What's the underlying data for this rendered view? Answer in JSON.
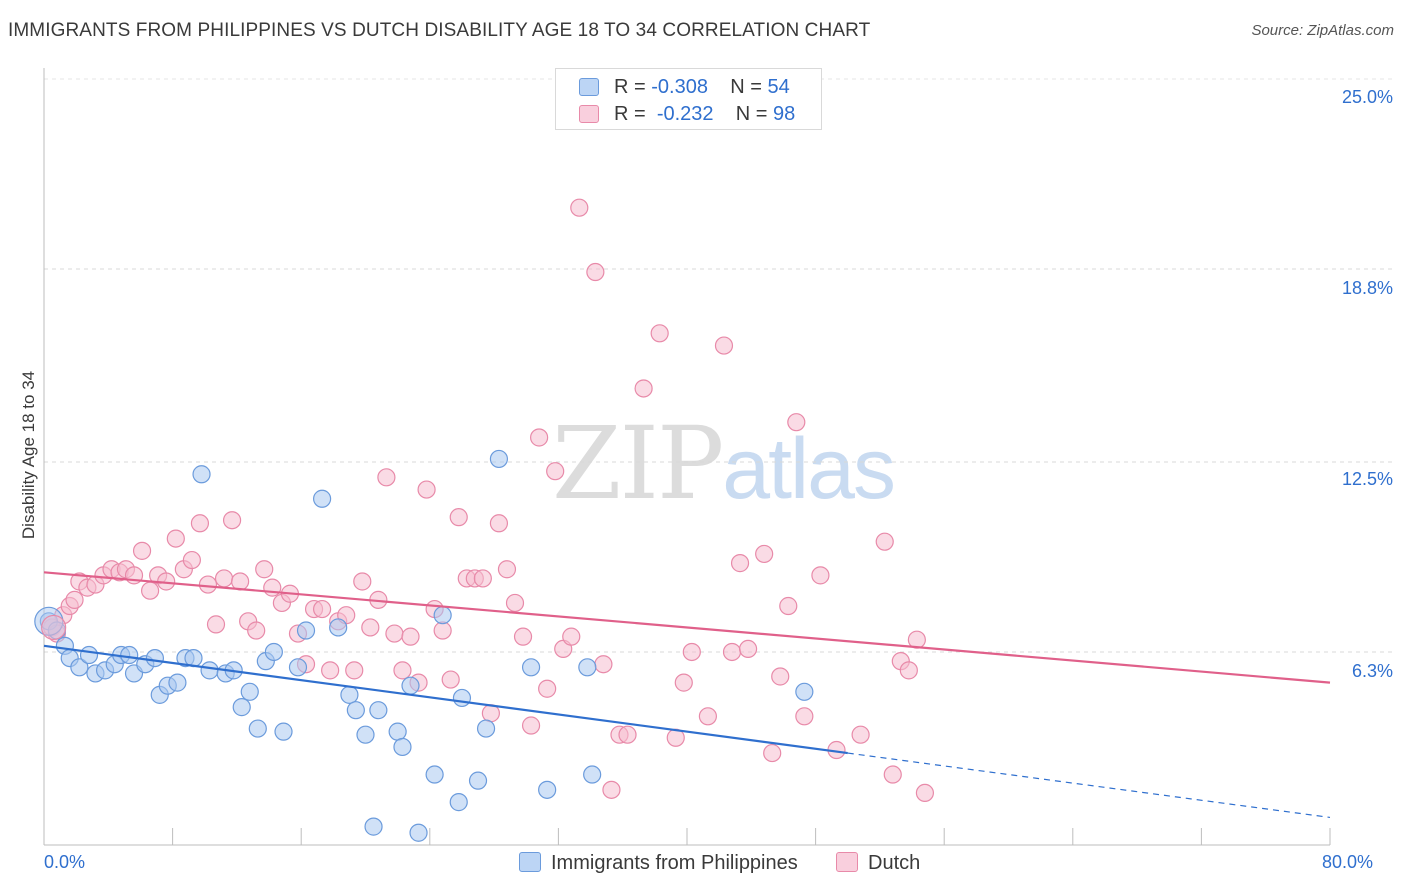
{
  "header": {
    "title": "IMMIGRANTS FROM PHILIPPINES VS DUTCH DISABILITY AGE 18 TO 34 CORRELATION CHART",
    "source": "Source: ZipAtlas.com"
  },
  "watermark": {
    "zip": "ZIP",
    "atlas": "atlas"
  },
  "legend": {
    "rows": [
      {
        "r_label": "R =",
        "r_value": "-0.308",
        "n_label": "N =",
        "n_value": "54"
      },
      {
        "r_label": "R =",
        "r_value": "-0.232",
        "n_label": "N =",
        "n_value": "98"
      }
    ]
  },
  "colors": {
    "blue_fill": "#a9c8f0",
    "blue_stroke": "#6b9bdc",
    "blue_line": "#2f6fce",
    "pink_fill": "#f6bdd0",
    "pink_stroke": "#e88aa9",
    "pink_line": "#e0608a",
    "tick_text": "#2f6fce",
    "grid": "#d8d8d8"
  },
  "chart_data": {
    "type": "scatter",
    "title": "IMMIGRANTS FROM PHILIPPINES VS DUTCH DISABILITY AGE 18 TO 34 CORRELATION CHART",
    "xlabel": "",
    "ylabel": "Disability Age 18 to 34",
    "xlim": [
      0,
      80
    ],
    "ylim": [
      0,
      25
    ],
    "x_tick_labels": [
      "0.0%",
      "80.0%"
    ],
    "y_ticks": [
      6.3,
      12.5,
      18.8,
      25.0
    ],
    "y_tick_labels": [
      "6.3%",
      "12.5%",
      "18.8%",
      "25.0%"
    ],
    "grid": true,
    "legend_position": "top-center",
    "series": [
      {
        "name": "Immigrants from Philippines",
        "color": "#6b9bdc",
        "trend": {
          "x": [
            0,
            50
          ],
          "y": [
            6.5,
            3.0
          ],
          "dashed_extension_to": [
            80,
            0.9
          ]
        },
        "points": [
          [
            0.3,
            7.3
          ],
          [
            0.8,
            7.0
          ],
          [
            1.3,
            6.5
          ],
          [
            1.6,
            6.1
          ],
          [
            2.2,
            5.8
          ],
          [
            2.8,
            6.2
          ],
          [
            3.2,
            5.6
          ],
          [
            3.8,
            5.7
          ],
          [
            4.4,
            5.9
          ],
          [
            4.8,
            6.2
          ],
          [
            5.3,
            6.2
          ],
          [
            5.6,
            5.6
          ],
          [
            6.3,
            5.9
          ],
          [
            6.9,
            6.1
          ],
          [
            7.2,
            4.9
          ],
          [
            7.7,
            5.2
          ],
          [
            8.3,
            5.3
          ],
          [
            8.8,
            6.1
          ],
          [
            9.3,
            6.1
          ],
          [
            9.8,
            12.1
          ],
          [
            10.3,
            5.7
          ],
          [
            11.3,
            5.6
          ],
          [
            11.8,
            5.7
          ],
          [
            12.3,
            4.5
          ],
          [
            12.8,
            5.0
          ],
          [
            13.3,
            3.8
          ],
          [
            13.8,
            6.0
          ],
          [
            14.3,
            6.3
          ],
          [
            14.9,
            3.7
          ],
          [
            15.8,
            5.8
          ],
          [
            16.3,
            7.0
          ],
          [
            17.3,
            11.3
          ],
          [
            18.3,
            7.1
          ],
          [
            19.0,
            4.9
          ],
          [
            19.4,
            4.4
          ],
          [
            20.0,
            3.6
          ],
          [
            20.8,
            4.4
          ],
          [
            20.5,
            0.6
          ],
          [
            22.0,
            3.7
          ],
          [
            22.3,
            3.2
          ],
          [
            22.8,
            5.2
          ],
          [
            23.3,
            0.4
          ],
          [
            24.3,
            2.3
          ],
          [
            24.8,
            7.5
          ],
          [
            25.8,
            1.4
          ],
          [
            26.0,
            4.8
          ],
          [
            27.0,
            2.1
          ],
          [
            27.5,
            3.8
          ],
          [
            28.3,
            12.6
          ],
          [
            30.3,
            5.8
          ],
          [
            31.3,
            1.8
          ],
          [
            33.8,
            5.8
          ],
          [
            34.1,
            2.3
          ],
          [
            47.3,
            5.0
          ]
        ]
      },
      {
        "name": "Dutch",
        "color": "#e88aa9",
        "trend": {
          "x": [
            0,
            80
          ],
          "y": [
            8.9,
            5.3
          ]
        },
        "points": [
          [
            0.5,
            7.1
          ],
          [
            0.8,
            6.9
          ],
          [
            1.2,
            7.5
          ],
          [
            1.6,
            7.8
          ],
          [
            1.9,
            8.0
          ],
          [
            2.2,
            8.6
          ],
          [
            2.7,
            8.4
          ],
          [
            3.2,
            8.5
          ],
          [
            3.7,
            8.8
          ],
          [
            4.2,
            9.0
          ],
          [
            4.7,
            8.9
          ],
          [
            5.1,
            9.0
          ],
          [
            5.6,
            8.8
          ],
          [
            6.1,
            9.6
          ],
          [
            6.6,
            8.3
          ],
          [
            7.1,
            8.8
          ],
          [
            7.6,
            8.6
          ],
          [
            8.2,
            10.0
          ],
          [
            8.7,
            9.0
          ],
          [
            9.2,
            9.3
          ],
          [
            9.7,
            10.5
          ],
          [
            10.2,
            8.5
          ],
          [
            10.7,
            7.2
          ],
          [
            11.2,
            8.7
          ],
          [
            11.7,
            10.6
          ],
          [
            12.2,
            8.6
          ],
          [
            12.7,
            7.3
          ],
          [
            13.2,
            7.0
          ],
          [
            13.7,
            9.0
          ],
          [
            14.2,
            8.4
          ],
          [
            14.8,
            7.9
          ],
          [
            15.3,
            8.2
          ],
          [
            15.8,
            6.9
          ],
          [
            16.3,
            5.9
          ],
          [
            16.8,
            7.7
          ],
          [
            17.3,
            7.7
          ],
          [
            17.8,
            5.7
          ],
          [
            18.3,
            7.3
          ],
          [
            18.8,
            7.5
          ],
          [
            19.3,
            5.7
          ],
          [
            19.8,
            8.6
          ],
          [
            20.3,
            7.1
          ],
          [
            20.8,
            8.0
          ],
          [
            21.3,
            12.0
          ],
          [
            21.8,
            6.9
          ],
          [
            22.3,
            5.7
          ],
          [
            22.8,
            6.8
          ],
          [
            23.3,
            5.3
          ],
          [
            23.8,
            11.6
          ],
          [
            24.3,
            7.7
          ],
          [
            24.8,
            7.0
          ],
          [
            25.3,
            5.4
          ],
          [
            25.8,
            10.7
          ],
          [
            26.3,
            8.7
          ],
          [
            26.8,
            8.7
          ],
          [
            27.3,
            8.7
          ],
          [
            27.8,
            4.3
          ],
          [
            28.3,
            10.5
          ],
          [
            28.8,
            9.0
          ],
          [
            29.3,
            7.9
          ],
          [
            29.8,
            6.8
          ],
          [
            30.3,
            3.9
          ],
          [
            30.8,
            13.3
          ],
          [
            31.3,
            5.1
          ],
          [
            31.8,
            12.2
          ],
          [
            32.3,
            6.4
          ],
          [
            32.8,
            6.8
          ],
          [
            33.3,
            20.8
          ],
          [
            34.3,
            18.7
          ],
          [
            34.8,
            5.9
          ],
          [
            35.3,
            1.8
          ],
          [
            35.8,
            3.6
          ],
          [
            36.3,
            3.6
          ],
          [
            37.3,
            14.9
          ],
          [
            38.3,
            16.7
          ],
          [
            39.3,
            3.5
          ],
          [
            39.8,
            5.3
          ],
          [
            40.3,
            6.3
          ],
          [
            41.3,
            4.2
          ],
          [
            42.3,
            16.3
          ],
          [
            42.8,
            6.3
          ],
          [
            43.3,
            9.2
          ],
          [
            43.8,
            6.4
          ],
          [
            44.8,
            9.5
          ],
          [
            45.3,
            3.0
          ],
          [
            45.8,
            5.5
          ],
          [
            46.3,
            7.8
          ],
          [
            46.8,
            13.8
          ],
          [
            47.3,
            4.2
          ],
          [
            48.3,
            8.8
          ],
          [
            49.3,
            3.1
          ],
          [
            50.8,
            3.6
          ],
          [
            52.3,
            9.9
          ],
          [
            52.8,
            2.3
          ],
          [
            53.3,
            6.0
          ],
          [
            53.8,
            5.7
          ],
          [
            54.3,
            6.7
          ],
          [
            54.8,
            1.7
          ]
        ]
      }
    ]
  },
  "bottom_legend": {
    "items": [
      "Immigrants from Philippines",
      "Dutch"
    ]
  }
}
